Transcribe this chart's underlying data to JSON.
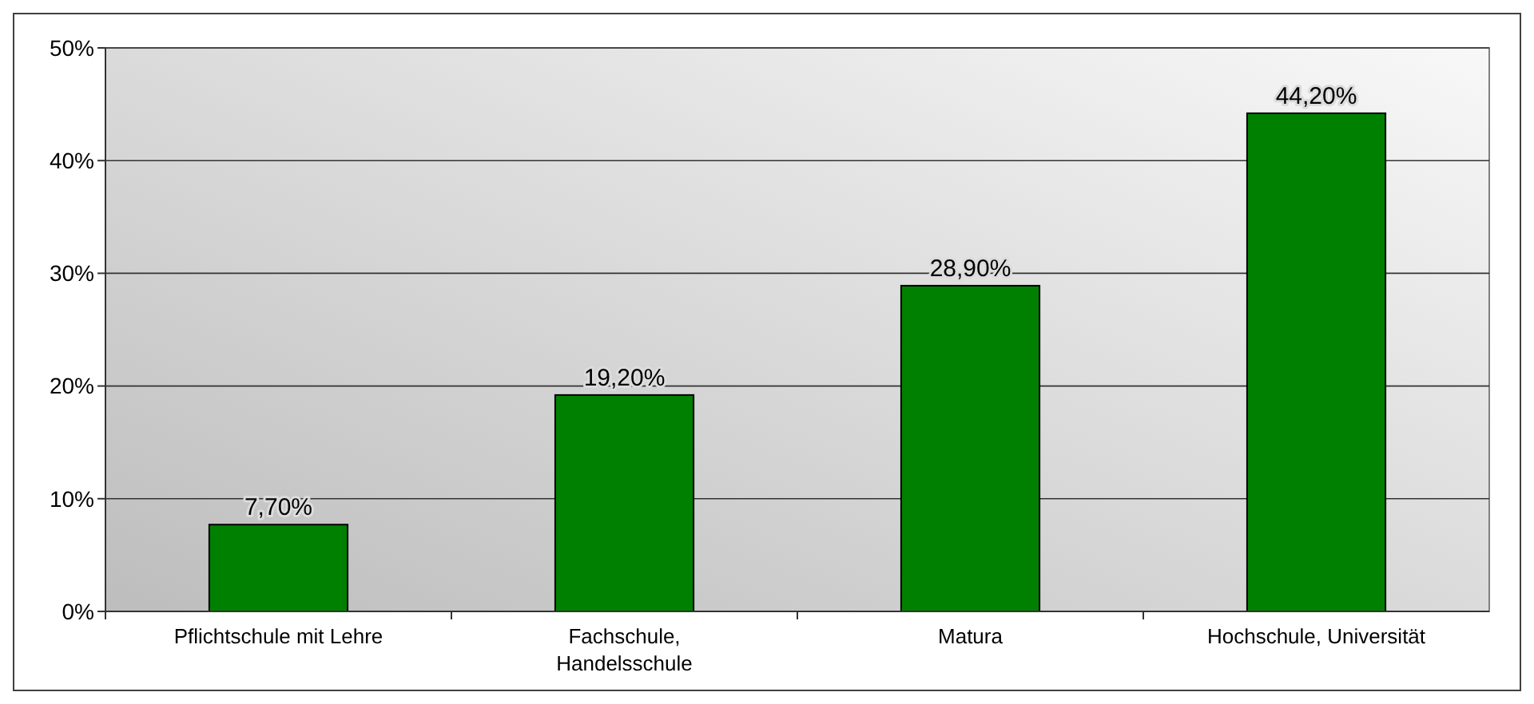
{
  "chart_data": {
    "type": "bar",
    "categories": [
      "Pflichtschule mit Lehre",
      "Fachschule, Handelsschule",
      "Matura",
      "Hochschule, Universität"
    ],
    "values": [
      7.7,
      19.2,
      28.9,
      44.2
    ],
    "value_labels": [
      "7,70%",
      "19,20%",
      "28,90%",
      "44,20%"
    ],
    "color": "#008000",
    "ylim": [
      0,
      50
    ],
    "yticks": [
      {
        "value": 0,
        "label": "0%"
      },
      {
        "value": 10,
        "label": "10%"
      },
      {
        "value": 20,
        "label": "20%"
      },
      {
        "value": 30,
        "label": "30%"
      },
      {
        "value": 40,
        "label": "40%"
      },
      {
        "value": 50,
        "label": "50%"
      }
    ],
    "grid": "y"
  }
}
